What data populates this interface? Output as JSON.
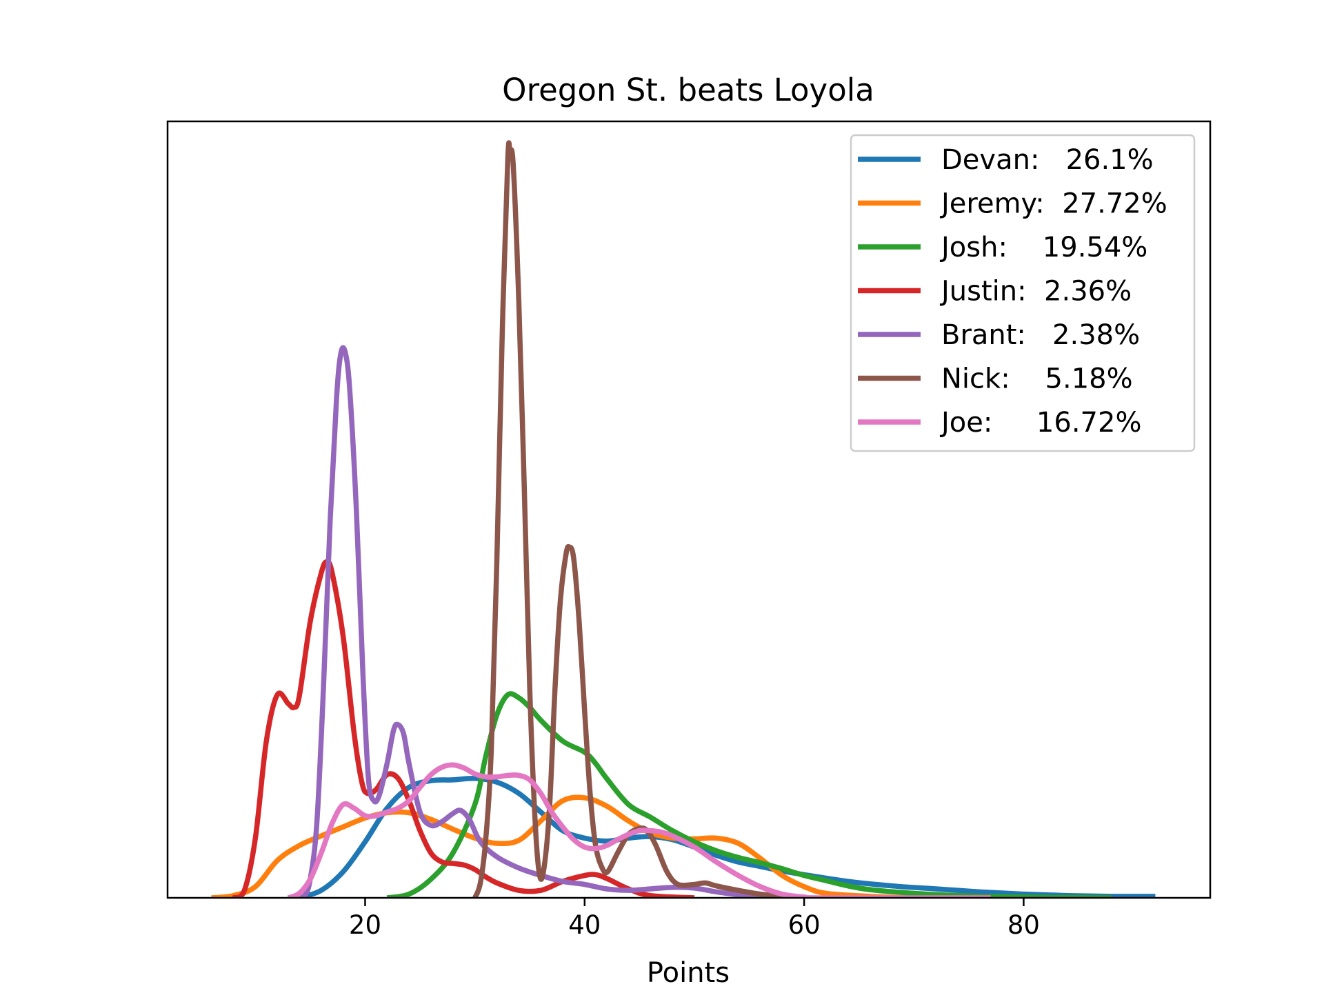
{
  "chart_data": {
    "type": "line",
    "title": "Oregon St. beats Loyola",
    "xlabel": "Points",
    "ylabel": "",
    "xlim": [
      2,
      97
    ],
    "ylim": [
      0,
      1.04
    ],
    "xticks": [
      20,
      40,
      60,
      80
    ],
    "yticks": [],
    "grid": false,
    "legend_position": "top-right",
    "series": [
      {
        "name": "Devan:   26.1%",
        "color": "#1f77b4",
        "points": [
          [
            14,
            0
          ],
          [
            16,
            0.01
          ],
          [
            18,
            0.035
          ],
          [
            20,
            0.075
          ],
          [
            22,
            0.12
          ],
          [
            24,
            0.148
          ],
          [
            26,
            0.157
          ],
          [
            28,
            0.158
          ],
          [
            30,
            0.16
          ],
          [
            32,
            0.155
          ],
          [
            34,
            0.14
          ],
          [
            36,
            0.115
          ],
          [
            38,
            0.09
          ],
          [
            40,
            0.08
          ],
          [
            42,
            0.076
          ],
          [
            44,
            0.08
          ],
          [
            46,
            0.082
          ],
          [
            48,
            0.078
          ],
          [
            50,
            0.068
          ],
          [
            52,
            0.057
          ],
          [
            54,
            0.048
          ],
          [
            56,
            0.042
          ],
          [
            58,
            0.036
          ],
          [
            60,
            0.031
          ],
          [
            64,
            0.022
          ],
          [
            68,
            0.016
          ],
          [
            72,
            0.012
          ],
          [
            76,
            0.008
          ],
          [
            80,
            0.005
          ],
          [
            84,
            0.003
          ],
          [
            88,
            0.002
          ],
          [
            92,
            0.002
          ]
        ]
      },
      {
        "name": "Jeremy:  27.72%",
        "color": "#ff7f0e",
        "points": [
          [
            6,
            0
          ],
          [
            8,
            0.003
          ],
          [
            10,
            0.015
          ],
          [
            12,
            0.05
          ],
          [
            14,
            0.07
          ],
          [
            16,
            0.083
          ],
          [
            18,
            0.095
          ],
          [
            20,
            0.107
          ],
          [
            22,
            0.114
          ],
          [
            24,
            0.114
          ],
          [
            26,
            0.105
          ],
          [
            28,
            0.092
          ],
          [
            30,
            0.08
          ],
          [
            32,
            0.073
          ],
          [
            34,
            0.077
          ],
          [
            36,
            0.103
          ],
          [
            38,
            0.13
          ],
          [
            40,
            0.134
          ],
          [
            42,
            0.123
          ],
          [
            44,
            0.103
          ],
          [
            46,
            0.087
          ],
          [
            48,
            0.08
          ],
          [
            50,
            0.079
          ],
          [
            52,
            0.08
          ],
          [
            54,
            0.073
          ],
          [
            56,
            0.053
          ],
          [
            58,
            0.03
          ],
          [
            60,
            0.015
          ],
          [
            62,
            0.006
          ],
          [
            66,
            0.002
          ],
          [
            70,
            0
          ],
          [
            76,
            0
          ],
          [
            83,
            0
          ]
        ]
      },
      {
        "name": "Josh:    19.54%",
        "color": "#2ca02c",
        "points": [
          [
            22,
            0
          ],
          [
            24,
            0.005
          ],
          [
            26,
            0.025
          ],
          [
            28,
            0.06
          ],
          [
            30,
            0.125
          ],
          [
            31,
            0.19
          ],
          [
            32,
            0.245
          ],
          [
            33,
            0.272
          ],
          [
            34,
            0.268
          ],
          [
            35,
            0.255
          ],
          [
            36,
            0.238
          ],
          [
            38,
            0.21
          ],
          [
            40,
            0.195
          ],
          [
            41,
            0.18
          ],
          [
            42,
            0.16
          ],
          [
            44,
            0.125
          ],
          [
            46,
            0.108
          ],
          [
            48,
            0.09
          ],
          [
            50,
            0.075
          ],
          [
            52,
            0.063
          ],
          [
            54,
            0.054
          ],
          [
            56,
            0.047
          ],
          [
            58,
            0.039
          ],
          [
            60,
            0.03
          ],
          [
            62,
            0.023
          ],
          [
            64,
            0.016
          ],
          [
            66,
            0.011
          ],
          [
            70,
            0.006
          ],
          [
            74,
            0.003
          ],
          [
            80,
            0.001
          ],
          [
            88,
            0
          ]
        ]
      },
      {
        "name": "Justin:  2.36%",
        "color": "#d62728",
        "points": [
          [
            8,
            0
          ],
          [
            9,
            0.01
          ],
          [
            10,
            0.08
          ],
          [
            11,
            0.21
          ],
          [
            12,
            0.272
          ],
          [
            13,
            0.26
          ],
          [
            13.5,
            0.255
          ],
          [
            14,
            0.27
          ],
          [
            15,
            0.37
          ],
          [
            16,
            0.435
          ],
          [
            16.5,
            0.45
          ],
          [
            17,
            0.435
          ],
          [
            18,
            0.35
          ],
          [
            19,
            0.22
          ],
          [
            19.7,
            0.155
          ],
          [
            20.2,
            0.14
          ],
          [
            21,
            0.145
          ],
          [
            22,
            0.165
          ],
          [
            23,
            0.16
          ],
          [
            24,
            0.13
          ],
          [
            25,
            0.09
          ],
          [
            26,
            0.06
          ],
          [
            27,
            0.048
          ],
          [
            28,
            0.046
          ],
          [
            29,
            0.044
          ],
          [
            30,
            0.038
          ],
          [
            31,
            0.028
          ],
          [
            32,
            0.02
          ],
          [
            34,
            0.01
          ],
          [
            36,
            0.01
          ],
          [
            38,
            0.022
          ],
          [
            40,
            0.03
          ],
          [
            41,
            0.031
          ],
          [
            42,
            0.026
          ],
          [
            44,
            0.012
          ],
          [
            46,
            0.003
          ],
          [
            50,
            0
          ]
        ]
      },
      {
        "name": "Brant:   2.38%",
        "color": "#9467bd",
        "points": [
          [
            14,
            0
          ],
          [
            14.5,
            0.003
          ],
          [
            15,
            0.025
          ],
          [
            15.6,
            0.1
          ],
          [
            16.2,
            0.28
          ],
          [
            16.8,
            0.5
          ],
          [
            17.4,
            0.67
          ],
          [
            17.8,
            0.73
          ],
          [
            18.2,
            0.73
          ],
          [
            18.6,
            0.68
          ],
          [
            19.2,
            0.52
          ],
          [
            19.8,
            0.3
          ],
          [
            20.3,
            0.16
          ],
          [
            20.8,
            0.13
          ],
          [
            21.3,
            0.138
          ],
          [
            22,
            0.18
          ],
          [
            22.6,
            0.225
          ],
          [
            23,
            0.232
          ],
          [
            23.5,
            0.22
          ],
          [
            24,
            0.18
          ],
          [
            25,
            0.115
          ],
          [
            26,
            0.097
          ],
          [
            27,
            0.102
          ],
          [
            28,
            0.113
          ],
          [
            28.7,
            0.117
          ],
          [
            29.5,
            0.105
          ],
          [
            30.5,
            0.075
          ],
          [
            32,
            0.055
          ],
          [
            34,
            0.04
          ],
          [
            36,
            0.03
          ],
          [
            38,
            0.022
          ],
          [
            40,
            0.018
          ],
          [
            42,
            0.012
          ],
          [
            44,
            0.01
          ],
          [
            46,
            0.012
          ],
          [
            48,
            0.014
          ],
          [
            50,
            0.013
          ],
          [
            52,
            0.008
          ],
          [
            54,
            0.004
          ],
          [
            56,
            0
          ],
          [
            58,
            0
          ]
        ]
      },
      {
        "name": "Nick:    5.18%",
        "color": "#8c564b",
        "points": [
          [
            30,
            0
          ],
          [
            30.5,
            0.02
          ],
          [
            31,
            0.08
          ],
          [
            31.5,
            0.2
          ],
          [
            32,
            0.45
          ],
          [
            32.5,
            0.76
          ],
          [
            33,
            0.99
          ],
          [
            33.2,
            1.0
          ],
          [
            33.5,
            0.98
          ],
          [
            34,
            0.8
          ],
          [
            34.5,
            0.55
          ],
          [
            35,
            0.28
          ],
          [
            35.5,
            0.1
          ],
          [
            35.9,
            0.03
          ],
          [
            36.3,
            0.04
          ],
          [
            36.8,
            0.12
          ],
          [
            37.3,
            0.28
          ],
          [
            37.8,
            0.4
          ],
          [
            38.3,
            0.46
          ],
          [
            38.6,
            0.47
          ],
          [
            39,
            0.455
          ],
          [
            39.5,
            0.37
          ],
          [
            40,
            0.25
          ],
          [
            40.5,
            0.14
          ],
          [
            41,
            0.07
          ],
          [
            41.6,
            0.04
          ],
          [
            42.1,
            0.035
          ],
          [
            43,
            0.06
          ],
          [
            44,
            0.085
          ],
          [
            45,
            0.093
          ],
          [
            45.7,
            0.09
          ],
          [
            46.5,
            0.07
          ],
          [
            47.5,
            0.035
          ],
          [
            48.5,
            0.018
          ],
          [
            50,
            0.018
          ],
          [
            51,
            0.02
          ],
          [
            52,
            0.016
          ],
          [
            54,
            0.01
          ],
          [
            56,
            0.005
          ],
          [
            58,
            0.002
          ],
          [
            60,
            0
          ]
        ]
      },
      {
        "name": "Joe:     16.72%",
        "color": "#e377c2",
        "points": [
          [
            13,
            0
          ],
          [
            14,
            0.006
          ],
          [
            15,
            0.025
          ],
          [
            16,
            0.06
          ],
          [
            17,
            0.1
          ],
          [
            18,
            0.125
          ],
          [
            19,
            0.12
          ],
          [
            20,
            0.11
          ],
          [
            21,
            0.11
          ],
          [
            22,
            0.115
          ],
          [
            23,
            0.12
          ],
          [
            24,
            0.13
          ],
          [
            25,
            0.148
          ],
          [
            26,
            0.165
          ],
          [
            27,
            0.175
          ],
          [
            28,
            0.178
          ],
          [
            29,
            0.174
          ],
          [
            30,
            0.166
          ],
          [
            31,
            0.162
          ],
          [
            32,
            0.162
          ],
          [
            33,
            0.164
          ],
          [
            34,
            0.164
          ],
          [
            35,
            0.158
          ],
          [
            36,
            0.14
          ],
          [
            37,
            0.115
          ],
          [
            38,
            0.095
          ],
          [
            39,
            0.078
          ],
          [
            40,
            0.068
          ],
          [
            41,
            0.066
          ],
          [
            42,
            0.07
          ],
          [
            43,
            0.078
          ],
          [
            44,
            0.085
          ],
          [
            45,
            0.09
          ],
          [
            46,
            0.09
          ],
          [
            47,
            0.088
          ],
          [
            48,
            0.083
          ],
          [
            50,
            0.068
          ],
          [
            52,
            0.048
          ],
          [
            54,
            0.03
          ],
          [
            56,
            0.015
          ],
          [
            58,
            0.005
          ],
          [
            60,
            0.001
          ],
          [
            62,
            0
          ],
          [
            77,
            0
          ]
        ]
      }
    ]
  }
}
